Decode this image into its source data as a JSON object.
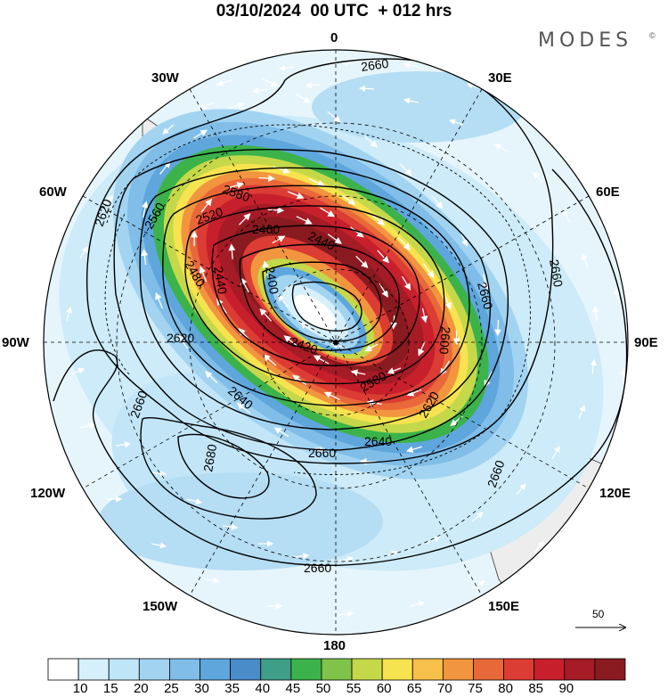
{
  "header": {
    "title": "03/10/2024  00 UTC  + 012 hrs",
    "brand": "MODES",
    "brand_mark": "©"
  },
  "map": {
    "projection": "south-polar-stereographic",
    "longitude_labels": [
      {
        "id": "0",
        "text": "0"
      },
      {
        "id": "30E",
        "text": "30E"
      },
      {
        "id": "60E",
        "text": "60E"
      },
      {
        "id": "90E",
        "text": "90E"
      },
      {
        "id": "120E",
        "text": "120E"
      },
      {
        "id": "150E",
        "text": "150E"
      },
      {
        "id": "180",
        "text": "180"
      },
      {
        "id": "150W",
        "text": "150W"
      },
      {
        "id": "120W",
        "text": "120W"
      },
      {
        "id": "90W",
        "text": "90W"
      },
      {
        "id": "60W",
        "text": "60W"
      },
      {
        "id": "30W",
        "text": "30W"
      }
    ],
    "height_contour_labels": [
      "2660",
      "2660",
      "2660",
      "2660",
      "2660",
      "2660",
      "2660",
      "2680",
      "2640",
      "2640",
      "2620",
      "2620",
      "2620",
      "2580",
      "2560",
      "2520",
      "2480",
      "2460",
      "2440",
      "2440",
      "2420",
      "2400",
      "2600",
      "2580"
    ],
    "wind_speed_shading": "isotachs",
    "colors": {
      "land": "#ededed",
      "coast": "#333333",
      "contour": "#000000",
      "wind_vector": "#ffffff"
    }
  },
  "reference_vector": {
    "label": "50"
  },
  "colorbar": {
    "colors": [
      "#ffffff",
      "#d6f0fb",
      "#bfe5f8",
      "#a2d4f1",
      "#80bde8",
      "#5ea6dc",
      "#4a8bc9",
      "#3e9e88",
      "#3bb34a",
      "#7fc34a",
      "#c5d84a",
      "#f6e34f",
      "#f7c04b",
      "#f2953f",
      "#e9683a",
      "#db3c33",
      "#c81f2c",
      "#a51b26",
      "#891a20"
    ],
    "labels": [
      "10",
      "15",
      "20",
      "25",
      "30",
      "35",
      "40",
      "45",
      "50",
      "55",
      "60",
      "65",
      "70",
      "75",
      "80",
      "85",
      "90"
    ]
  }
}
